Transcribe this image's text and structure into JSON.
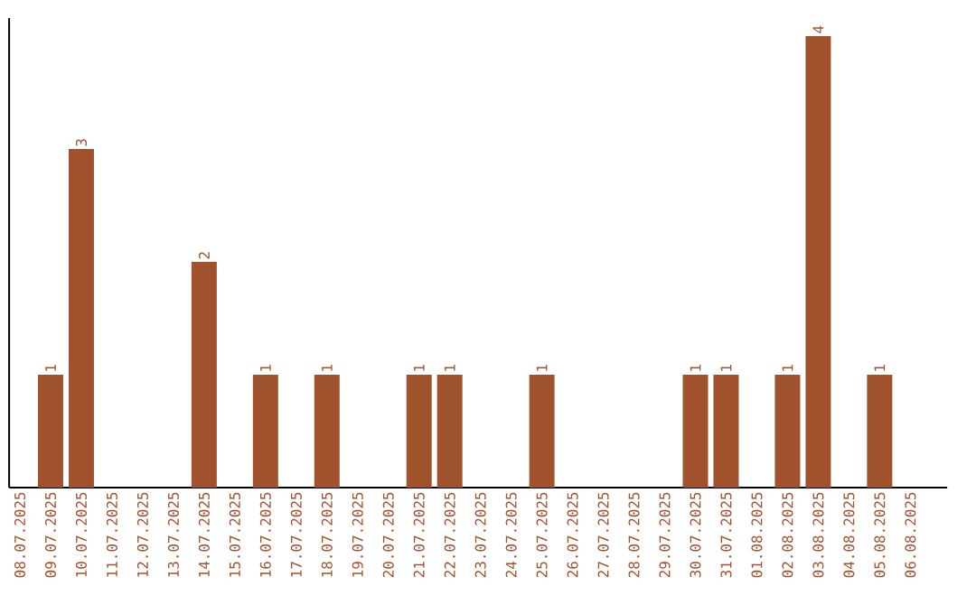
{
  "chart_data": {
    "type": "bar",
    "categories": [
      "08.07.2025",
      "09.07.2025",
      "10.07.2025",
      "11.07.2025",
      "12.07.2025",
      "13.07.2025",
      "14.07.2025",
      "15.07.2025",
      "16.07.2025",
      "17.07.2025",
      "18.07.2025",
      "19.07.2025",
      "20.07.2025",
      "21.07.2025",
      "22.07.2025",
      "23.07.2025",
      "24.07.2025",
      "25.07.2025",
      "26.07.2025",
      "27.07.2025",
      "28.07.2025",
      "29.07.2025",
      "30.07.2025",
      "31.07.2025",
      "01.08.2025",
      "02.08.2025",
      "03.08.2025",
      "04.08.2025",
      "05.08.2025",
      "06.08.2025"
    ],
    "values": [
      null,
      1,
      3,
      null,
      null,
      null,
      2,
      null,
      1,
      null,
      1,
      null,
      null,
      1,
      1,
      null,
      null,
      1,
      null,
      null,
      null,
      null,
      1,
      1,
      null,
      1,
      4,
      null,
      1,
      null
    ],
    "color": "#a0522d",
    "ylim": [
      0,
      4.16
    ],
    "tick_labels": "x",
    "data_labels": true
  }
}
